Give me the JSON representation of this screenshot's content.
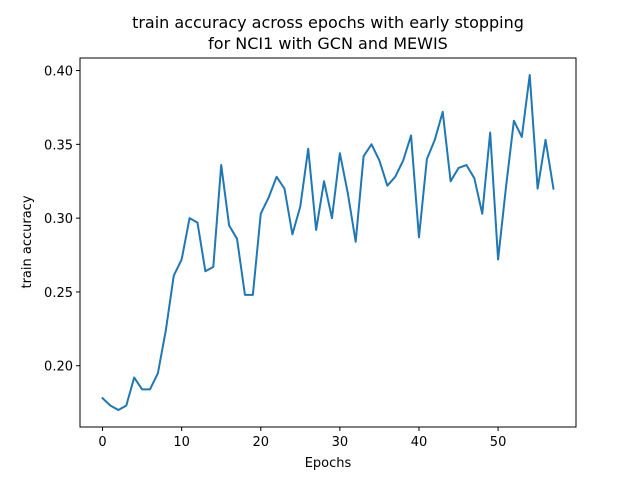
{
  "chart_data": {
    "type": "line",
    "title_lines": [
      "train accuracy across epochs with early stopping",
      "for NCI1 with GCN and MEWIS"
    ],
    "xlabel": "Epochs",
    "ylabel": "train accuracy",
    "xlim": [
      -2.85,
      59.85
    ],
    "ylim": [
      0.1585,
      0.4085
    ],
    "xticks": [
      0,
      10,
      20,
      30,
      40,
      50
    ],
    "yticks": [
      0.2,
      0.25,
      0.3,
      0.35,
      0.4
    ],
    "ytick_labels": [
      "0.20",
      "0.25",
      "0.30",
      "0.35",
      "0.40"
    ],
    "grid": false,
    "line_color": "#1f77b4",
    "series": [
      {
        "x": [
          0,
          1,
          2,
          3,
          4,
          5,
          6,
          7,
          8,
          9,
          10,
          11,
          12,
          13,
          14,
          15,
          16,
          17,
          18,
          19,
          20,
          21,
          22,
          23,
          24,
          25,
          26,
          27,
          28,
          29,
          30,
          31,
          32,
          33,
          34,
          35,
          36,
          37,
          38,
          39,
          40,
          41,
          42,
          43,
          44,
          45,
          46,
          47,
          48,
          49,
          50,
          51,
          52,
          53,
          54,
          55,
          56,
          57
        ],
        "values": [
          0.178,
          0.173,
          0.17,
          0.173,
          0.192,
          0.184,
          0.184,
          0.195,
          0.224,
          0.261,
          0.272,
          0.3,
          0.297,
          0.264,
          0.267,
          0.336,
          0.295,
          0.286,
          0.248,
          0.248,
          0.303,
          0.314,
          0.328,
          0.32,
          0.289,
          0.308,
          0.347,
          0.292,
          0.325,
          0.3,
          0.344,
          0.317,
          0.284,
          0.342,
          0.35,
          0.339,
          0.322,
          0.328,
          0.339,
          0.356,
          0.287,
          0.34,
          0.353,
          0.372,
          0.325,
          0.334,
          0.336,
          0.327,
          0.303,
          0.358,
          0.272,
          0.321,
          0.366,
          0.355,
          0.397,
          0.32,
          0.353,
          0.32
        ]
      }
    ]
  }
}
